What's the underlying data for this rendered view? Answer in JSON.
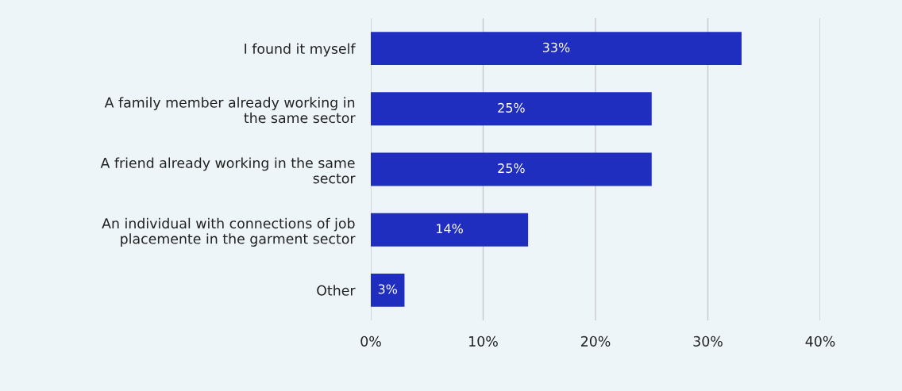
{
  "chart_data": {
    "type": "bar",
    "orientation": "horizontal",
    "categories": [
      "I found it myself",
      "A family member already working in\nthe same sector",
      "A friend already working in the same\nsector",
      "An individual with connections of job\nplacemente in the garment sector",
      "Other"
    ],
    "values": [
      33,
      25,
      25,
      14,
      3
    ],
    "color": "#1f2ebf",
    "xlim": [
      0,
      40
    ],
    "xticks": [
      {
        "value": 0,
        "label": "0%"
      },
      {
        "value": 10,
        "label": "10%"
      },
      {
        "value": 20,
        "label": "20%"
      },
      {
        "value": 30,
        "label": "30%"
      },
      {
        "value": 40,
        "label": "40%"
      }
    ],
    "value_labels": [
      "33%",
      "25%",
      "25%",
      "14%",
      "3%"
    ],
    "grid": "x"
  }
}
